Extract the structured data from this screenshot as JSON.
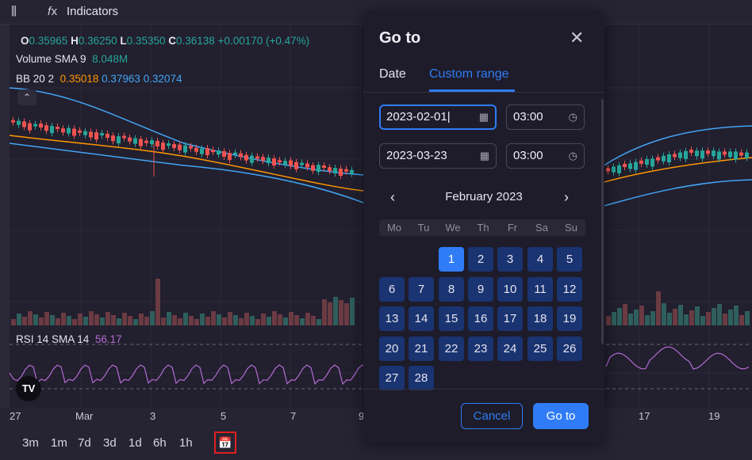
{
  "toolbar": {
    "indicators_label": "Indicators",
    "candle_icon": "candles-icon",
    "fx_icon": "fx-icon"
  },
  "legend": {
    "o_label": "O",
    "o_value": "0.35965",
    "h_label": "H",
    "h_value": "0.36250",
    "l_label": "L",
    "l_value": "0.35350",
    "c_label": "C",
    "c_value": "0.36138",
    "change": "+0.00170 (+0.47%)",
    "volume_label": "Volume SMA 9",
    "volume_value": "8.048M",
    "bb_label": "BB 20 2",
    "bb_basis": "0.35018",
    "bb_upper": "0.37963",
    "bb_lower": "0.32074",
    "rsi_label": "RSI 14 SMA 14",
    "rsi_value": "56.17"
  },
  "logo": {
    "text": "TV"
  },
  "xaxis": {
    "ticks": [
      "27",
      "Mar",
      "3",
      "5",
      "7",
      "9",
      "17",
      "19"
    ]
  },
  "ranges": [
    "3m",
    "1m",
    "7d",
    "3d",
    "1d",
    "6h",
    "1h"
  ],
  "dialog": {
    "title": "Go to",
    "tabs": [
      {
        "label": "Date"
      },
      {
        "label": "Custom range"
      }
    ],
    "start_date": "2023-02-01",
    "start_time": "03:00",
    "end_date": "2023-03-23",
    "end_time": "03:00",
    "calendar": {
      "month": "February 2023",
      "weekdays": [
        "Mo",
        "Tu",
        "We",
        "Th",
        "Fr",
        "Sa",
        "Su"
      ],
      "first_weekday_index": 2,
      "selected_day": 1,
      "days": [
        "1",
        "2",
        "3",
        "4",
        "5",
        "6",
        "7",
        "8",
        "9",
        "10",
        "11",
        "12",
        "13",
        "14",
        "15",
        "16",
        "17",
        "18",
        "19",
        "20",
        "21",
        "22",
        "23",
        "24",
        "25",
        "26",
        "27",
        "28"
      ]
    },
    "cancel_label": "Cancel",
    "goto_label": "Go to"
  },
  "colors": {
    "accent": "#2f7cf6",
    "up": "#26a69a",
    "down": "#ef5350",
    "basis": "#ff9800",
    "band": "#42a5f5",
    "rsi": "#b36bd4"
  }
}
